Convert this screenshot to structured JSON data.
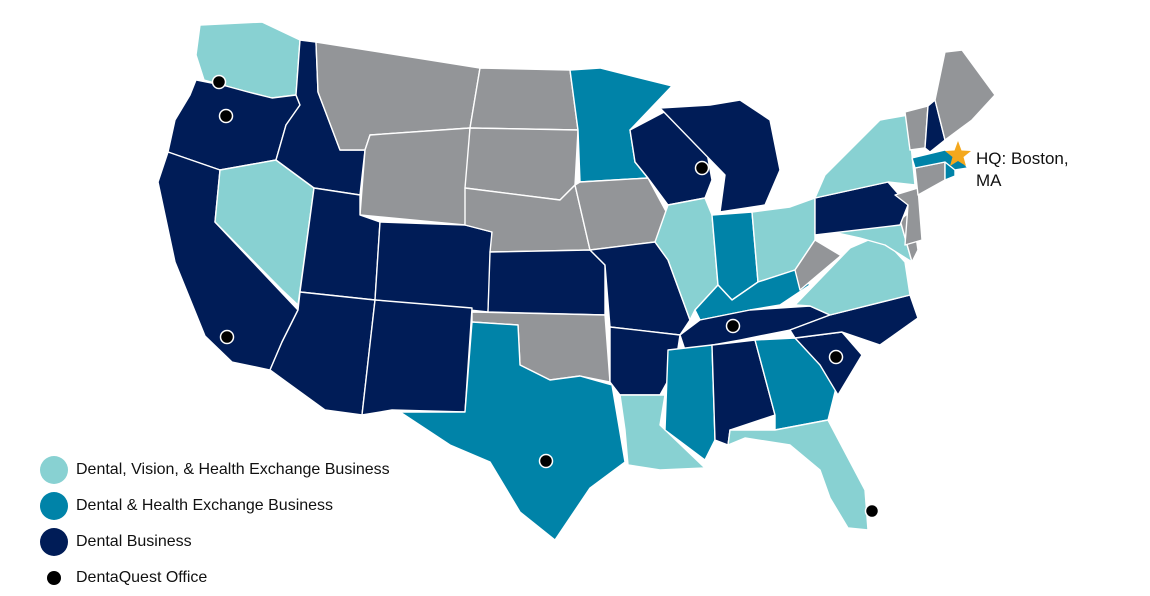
{
  "colors": {
    "dvh": "#88d1d2",
    "dh": "#0083a8",
    "dental": "#001c57",
    "none": "#939598",
    "office": "#000000",
    "hq_star": "#f4a81d"
  },
  "hq": {
    "label_line1": "HQ: Boston,",
    "label_line2": "MA",
    "icon": "star-icon"
  },
  "legend": [
    {
      "label": "Dental, Vision, & Health Exchange Business",
      "color": "#88d1d2"
    },
    {
      "label": "Dental & Health Exchange Business",
      "color": "#0083a8"
    },
    {
      "label": "Dental Business",
      "color": "#001c57"
    },
    {
      "label": "DentaQuest Office",
      "color": "#000000"
    }
  ],
  "states": [
    {
      "id": "WA",
      "cat": "dvh"
    },
    {
      "id": "OR",
      "cat": "dental"
    },
    {
      "id": "CA",
      "cat": "dental"
    },
    {
      "id": "NV",
      "cat": "dvh"
    },
    {
      "id": "ID",
      "cat": "dental"
    },
    {
      "id": "MT",
      "cat": "none"
    },
    {
      "id": "WY",
      "cat": "none"
    },
    {
      "id": "UT",
      "cat": "dental"
    },
    {
      "id": "AZ",
      "cat": "dental"
    },
    {
      "id": "CO",
      "cat": "dental"
    },
    {
      "id": "NM",
      "cat": "dental"
    },
    {
      "id": "ND",
      "cat": "none"
    },
    {
      "id": "SD",
      "cat": "none"
    },
    {
      "id": "NE",
      "cat": "none"
    },
    {
      "id": "KS",
      "cat": "dental"
    },
    {
      "id": "OK",
      "cat": "none"
    },
    {
      "id": "TX",
      "cat": "dh"
    },
    {
      "id": "MN",
      "cat": "dh"
    },
    {
      "id": "IA",
      "cat": "none"
    },
    {
      "id": "MO",
      "cat": "dental"
    },
    {
      "id": "AR",
      "cat": "dental"
    },
    {
      "id": "LA",
      "cat": "dvh"
    },
    {
      "id": "WI",
      "cat": "dental"
    },
    {
      "id": "IL",
      "cat": "dvh"
    },
    {
      "id": "MI",
      "cat": "dental"
    },
    {
      "id": "IN",
      "cat": "dh"
    },
    {
      "id": "OH",
      "cat": "dvh"
    },
    {
      "id": "KY",
      "cat": "dh"
    },
    {
      "id": "TN",
      "cat": "dental"
    },
    {
      "id": "MS",
      "cat": "dh"
    },
    {
      "id": "AL",
      "cat": "dental"
    },
    {
      "id": "GA",
      "cat": "dh"
    },
    {
      "id": "FL",
      "cat": "dvh"
    },
    {
      "id": "SC",
      "cat": "dental"
    },
    {
      "id": "NC",
      "cat": "dental"
    },
    {
      "id": "VA",
      "cat": "dvh"
    },
    {
      "id": "WV",
      "cat": "none"
    },
    {
      "id": "MD",
      "cat": "dvh"
    },
    {
      "id": "DE",
      "cat": "none"
    },
    {
      "id": "PA",
      "cat": "dental"
    },
    {
      "id": "NJ",
      "cat": "none"
    },
    {
      "id": "NY",
      "cat": "dvh"
    },
    {
      "id": "CT",
      "cat": "none"
    },
    {
      "id": "RI",
      "cat": "dh"
    },
    {
      "id": "MA",
      "cat": "dh"
    },
    {
      "id": "VT",
      "cat": "none"
    },
    {
      "id": "NH",
      "cat": "dental"
    },
    {
      "id": "ME",
      "cat": "none"
    }
  ],
  "offices": [
    {
      "state": "WA"
    },
    {
      "state": "OR"
    },
    {
      "state": "CA"
    },
    {
      "state": "WI"
    },
    {
      "state": "TN"
    },
    {
      "state": "SC"
    },
    {
      "state": "TX"
    },
    {
      "state": "FL"
    }
  ]
}
